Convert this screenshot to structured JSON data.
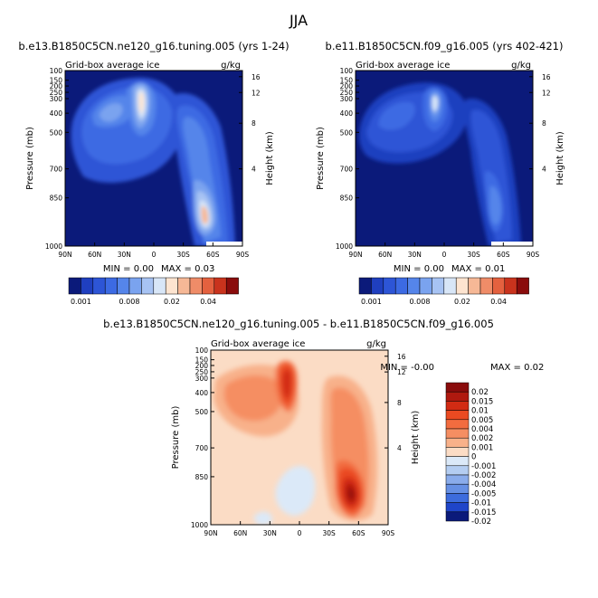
{
  "season": "JJA",
  "chart_data": [
    {
      "type": "heatmap",
      "title": "b.e13.B1850C5CN.ne120_g16.tuning.005 (yrs 1-24)",
      "subtitle_left": "Grid-box average ice",
      "subtitle_right": "g/kg",
      "ylabel": "Pressure (mb)",
      "ylabel_right": "Height (km)",
      "x_ticks": [
        "90N",
        "60N",
        "30N",
        "0",
        "30S",
        "60S",
        "90S"
      ],
      "y_ticks": [
        "100",
        "150",
        "200",
        "250",
        "300",
        "400",
        "500",
        "700",
        "850",
        "1000"
      ],
      "y_ticks_right": [
        "16",
        "12",
        "8",
        "4"
      ],
      "min_label": "MIN =",
      "min_value": "0.00",
      "max_label": "MAX =",
      "max_value": "0.03",
      "colorbar_labels": [
        "0.001",
        "0.008",
        "0.02",
        "0.04"
      ]
    },
    {
      "type": "heatmap",
      "title": "b.e11.B1850C5CN.f09_g16.005 (yrs 402-421)",
      "subtitle_left": "Grid-box average ice",
      "subtitle_right": "g/kg",
      "ylabel": "Pressure (mb)",
      "ylabel_right": "Height (km)",
      "x_ticks": [
        "90N",
        "60N",
        "30N",
        "0",
        "30S",
        "60S",
        "90S"
      ],
      "y_ticks": [
        "100",
        "150",
        "200",
        "250",
        "300",
        "400",
        "500",
        "700",
        "850",
        "1000"
      ],
      "y_ticks_right": [
        "16",
        "12",
        "8",
        "4"
      ],
      "min_label": "MIN =",
      "min_value": "0.00",
      "max_label": "MAX =",
      "max_value": "0.01",
      "colorbar_labels": [
        "0.001",
        "0.008",
        "0.02",
        "0.04"
      ]
    },
    {
      "type": "heatmap",
      "title": "b.e13.B1850C5CN.ne120_g16.tuning.005 - b.e11.B1850C5CN.f09_g16.005",
      "subtitle_left": "Grid-box average ice",
      "subtitle_right": "g/kg",
      "ylabel": "Pressure (mb)",
      "ylabel_right": "Height (km)",
      "x_ticks": [
        "90N",
        "60N",
        "30N",
        "0",
        "30S",
        "60S",
        "90S"
      ],
      "y_ticks": [
        "100",
        "150",
        "200",
        "250",
        "300",
        "400",
        "500",
        "700",
        "850",
        "1000"
      ],
      "y_ticks_right": [
        "16",
        "12",
        "8",
        "4"
      ],
      "min_label": "MIN =",
      "min_value": "-0.00",
      "max_label": "MAX =",
      "max_value": "0.02",
      "colorbar_labels": [
        "0.02",
        "0.015",
        "0.01",
        "0.005",
        "0.004",
        "0.002",
        "0.001",
        "0",
        "-0.001",
        "-0.002",
        "-0.004",
        "-0.005",
        "-0.01",
        "-0.015",
        "-0.02"
      ]
    }
  ],
  "colors": {
    "seq": [
      "#0b1a7a",
      "#1f3fbf",
      "#2d55d6",
      "#3c6ae3",
      "#5585ea",
      "#7aa3ef",
      "#a7c3f3",
      "#d8e6f7",
      "#fde4d0",
      "#f6b896",
      "#ef8c68",
      "#e4613f",
      "#c9331d",
      "#8a0c0c"
    ],
    "div": [
      "#8a0c0c",
      "#b0190f",
      "#d22b13",
      "#ea4a21",
      "#f26c3f",
      "#f58e62",
      "#f8b18a",
      "#fbdcc5",
      "#dbe9f8",
      "#b4cdf1",
      "#8aaceb",
      "#6690e4",
      "#3d6cdd",
      "#1f45c9",
      "#0b1a7a"
    ]
  }
}
